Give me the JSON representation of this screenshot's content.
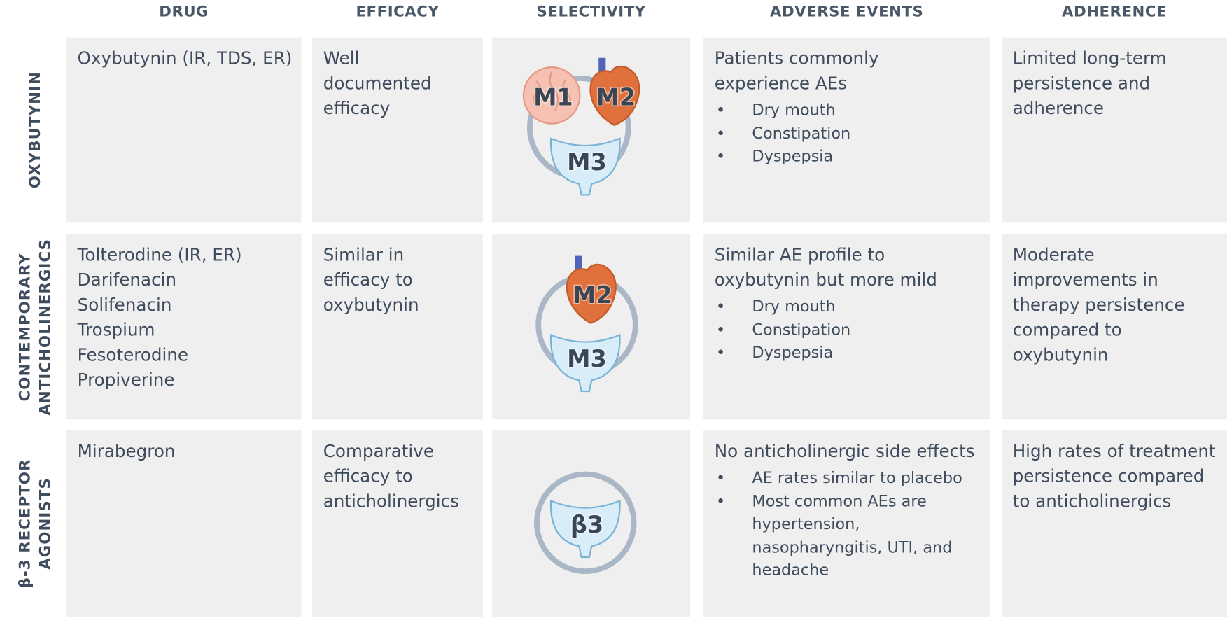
{
  "header": {
    "columns": [
      "DRUG",
      "EFFICACY",
      "SELECTIVITY",
      "ADVERSE EVENTS",
      "ADHERENCE"
    ]
  },
  "rows": [
    {
      "label": [
        "OXYBUTYNIN"
      ],
      "drug": [
        "Oxybutynin (IR, TDS, ER)"
      ],
      "efficacy": "Well documented efficacy",
      "selectivity": [
        "M1",
        "M2",
        "M3"
      ],
      "adverse_events": {
        "text": "Patients commonly experience AEs",
        "bullets": [
          "Dry mouth",
          "Constipation",
          "Dyspepsia"
        ]
      },
      "adherence": "Limited long-term persistence and adherence"
    },
    {
      "label": [
        "CONTEMPORARY",
        "ANTICHOLINERGICS"
      ],
      "drug": [
        "Tolterodine (IR, ER)",
        "Darifenacin",
        "Solifenacin",
        "Trospium",
        "Fesoterodine",
        "Propiverine"
      ],
      "efficacy": "Similar in efficacy to oxybutynin",
      "selectivity": [
        "M2",
        "M3"
      ],
      "adverse_events": {
        "text": "Similar AE profile to oxybutynin but more mild",
        "bullets": [
          "Dry mouth",
          "Constipation",
          "Dyspepsia"
        ]
      },
      "adherence": "Moderate improvements in therapy persistence compared to oxybutynin"
    },
    {
      "label": [
        "β-3 RECEPTOR",
        "AGONISTS"
      ],
      "drug": [
        "Mirabegron"
      ],
      "efficacy": "Comparative efficacy to anticholinergics",
      "selectivity": [
        "β3"
      ],
      "adverse_events": {
        "text": "No anticholinergic side effects",
        "bullets": [
          "AE rates similar to placebo",
          "Most common AEs are hypertension, nasopharyngitis, UTI, and headache"
        ]
      },
      "adherence": "High rates of treatment persistence compared to anticholinergics"
    }
  ]
}
